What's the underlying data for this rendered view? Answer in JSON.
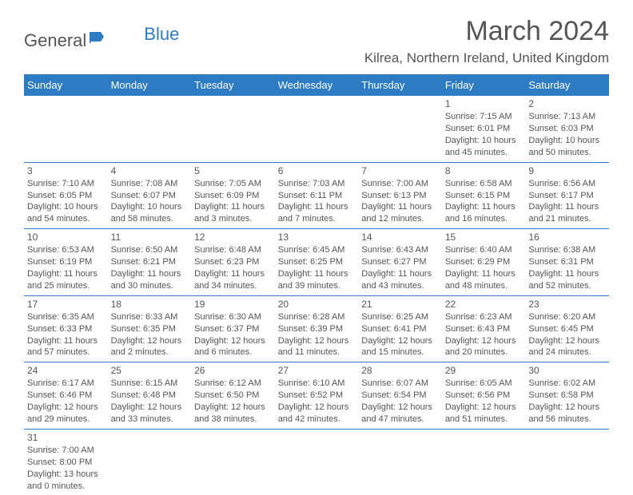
{
  "logo": {
    "text1": "General",
    "text2": "Blue",
    "color_gray": "#555555",
    "color_blue": "#2d7bc2"
  },
  "title": "March 2024",
  "location": "Kilrea, Northern Ireland, United Kingdom",
  "headers": [
    "Sunday",
    "Monday",
    "Tuesday",
    "Wednesday",
    "Thursday",
    "Friday",
    "Saturday"
  ],
  "style": {
    "header_bg": "#2d7bc2",
    "header_fg": "#ffffff",
    "border_color": "#2d7bc2",
    "body_text": "#555555",
    "page_bg": "#ffffff",
    "title_fontsize": 34,
    "location_fontsize": 17,
    "header_fontsize": 13,
    "cell_fontsize": 11
  },
  "weeks": [
    [
      null,
      null,
      null,
      null,
      null,
      {
        "n": "1",
        "sr": "Sunrise: 7:15 AM",
        "ss": "Sunset: 6:01 PM",
        "dl": "Daylight: 10 hours and 45 minutes."
      },
      {
        "n": "2",
        "sr": "Sunrise: 7:13 AM",
        "ss": "Sunset: 6:03 PM",
        "dl": "Daylight: 10 hours and 50 minutes."
      }
    ],
    [
      {
        "n": "3",
        "sr": "Sunrise: 7:10 AM",
        "ss": "Sunset: 6:05 PM",
        "dl": "Daylight: 10 hours and 54 minutes."
      },
      {
        "n": "4",
        "sr": "Sunrise: 7:08 AM",
        "ss": "Sunset: 6:07 PM",
        "dl": "Daylight: 10 hours and 58 minutes."
      },
      {
        "n": "5",
        "sr": "Sunrise: 7:05 AM",
        "ss": "Sunset: 6:09 PM",
        "dl": "Daylight: 11 hours and 3 minutes."
      },
      {
        "n": "6",
        "sr": "Sunrise: 7:03 AM",
        "ss": "Sunset: 6:11 PM",
        "dl": "Daylight: 11 hours and 7 minutes."
      },
      {
        "n": "7",
        "sr": "Sunrise: 7:00 AM",
        "ss": "Sunset: 6:13 PM",
        "dl": "Daylight: 11 hours and 12 minutes."
      },
      {
        "n": "8",
        "sr": "Sunrise: 6:58 AM",
        "ss": "Sunset: 6:15 PM",
        "dl": "Daylight: 11 hours and 16 minutes."
      },
      {
        "n": "9",
        "sr": "Sunrise: 6:56 AM",
        "ss": "Sunset: 6:17 PM",
        "dl": "Daylight: 11 hours and 21 minutes."
      }
    ],
    [
      {
        "n": "10",
        "sr": "Sunrise: 6:53 AM",
        "ss": "Sunset: 6:19 PM",
        "dl": "Daylight: 11 hours and 25 minutes."
      },
      {
        "n": "11",
        "sr": "Sunrise: 6:50 AM",
        "ss": "Sunset: 6:21 PM",
        "dl": "Daylight: 11 hours and 30 minutes."
      },
      {
        "n": "12",
        "sr": "Sunrise: 6:48 AM",
        "ss": "Sunset: 6:23 PM",
        "dl": "Daylight: 11 hours and 34 minutes."
      },
      {
        "n": "13",
        "sr": "Sunrise: 6:45 AM",
        "ss": "Sunset: 6:25 PM",
        "dl": "Daylight: 11 hours and 39 minutes."
      },
      {
        "n": "14",
        "sr": "Sunrise: 6:43 AM",
        "ss": "Sunset: 6:27 PM",
        "dl": "Daylight: 11 hours and 43 minutes."
      },
      {
        "n": "15",
        "sr": "Sunrise: 6:40 AM",
        "ss": "Sunset: 6:29 PM",
        "dl": "Daylight: 11 hours and 48 minutes."
      },
      {
        "n": "16",
        "sr": "Sunrise: 6:38 AM",
        "ss": "Sunset: 6:31 PM",
        "dl": "Daylight: 11 hours and 52 minutes."
      }
    ],
    [
      {
        "n": "17",
        "sr": "Sunrise: 6:35 AM",
        "ss": "Sunset: 6:33 PM",
        "dl": "Daylight: 11 hours and 57 minutes."
      },
      {
        "n": "18",
        "sr": "Sunrise: 6:33 AM",
        "ss": "Sunset: 6:35 PM",
        "dl": "Daylight: 12 hours and 2 minutes."
      },
      {
        "n": "19",
        "sr": "Sunrise: 6:30 AM",
        "ss": "Sunset: 6:37 PM",
        "dl": "Daylight: 12 hours and 6 minutes."
      },
      {
        "n": "20",
        "sr": "Sunrise: 6:28 AM",
        "ss": "Sunset: 6:39 PM",
        "dl": "Daylight: 12 hours and 11 minutes."
      },
      {
        "n": "21",
        "sr": "Sunrise: 6:25 AM",
        "ss": "Sunset: 6:41 PM",
        "dl": "Daylight: 12 hours and 15 minutes."
      },
      {
        "n": "22",
        "sr": "Sunrise: 6:23 AM",
        "ss": "Sunset: 6:43 PM",
        "dl": "Daylight: 12 hours and 20 minutes."
      },
      {
        "n": "23",
        "sr": "Sunrise: 6:20 AM",
        "ss": "Sunset: 6:45 PM",
        "dl": "Daylight: 12 hours and 24 minutes."
      }
    ],
    [
      {
        "n": "24",
        "sr": "Sunrise: 6:17 AM",
        "ss": "Sunset: 6:46 PM",
        "dl": "Daylight: 12 hours and 29 minutes."
      },
      {
        "n": "25",
        "sr": "Sunrise: 6:15 AM",
        "ss": "Sunset: 6:48 PM",
        "dl": "Daylight: 12 hours and 33 minutes."
      },
      {
        "n": "26",
        "sr": "Sunrise: 6:12 AM",
        "ss": "Sunset: 6:50 PM",
        "dl": "Daylight: 12 hours and 38 minutes."
      },
      {
        "n": "27",
        "sr": "Sunrise: 6:10 AM",
        "ss": "Sunset: 6:52 PM",
        "dl": "Daylight: 12 hours and 42 minutes."
      },
      {
        "n": "28",
        "sr": "Sunrise: 6:07 AM",
        "ss": "Sunset: 6:54 PM",
        "dl": "Daylight: 12 hours and 47 minutes."
      },
      {
        "n": "29",
        "sr": "Sunrise: 6:05 AM",
        "ss": "Sunset: 6:56 PM",
        "dl": "Daylight: 12 hours and 51 minutes."
      },
      {
        "n": "30",
        "sr": "Sunrise: 6:02 AM",
        "ss": "Sunset: 6:58 PM",
        "dl": "Daylight: 12 hours and 56 minutes."
      }
    ],
    [
      {
        "n": "31",
        "sr": "Sunrise: 7:00 AM",
        "ss": "Sunset: 8:00 PM",
        "dl": "Daylight: 13 hours and 0 minutes."
      },
      null,
      null,
      null,
      null,
      null,
      null
    ]
  ]
}
